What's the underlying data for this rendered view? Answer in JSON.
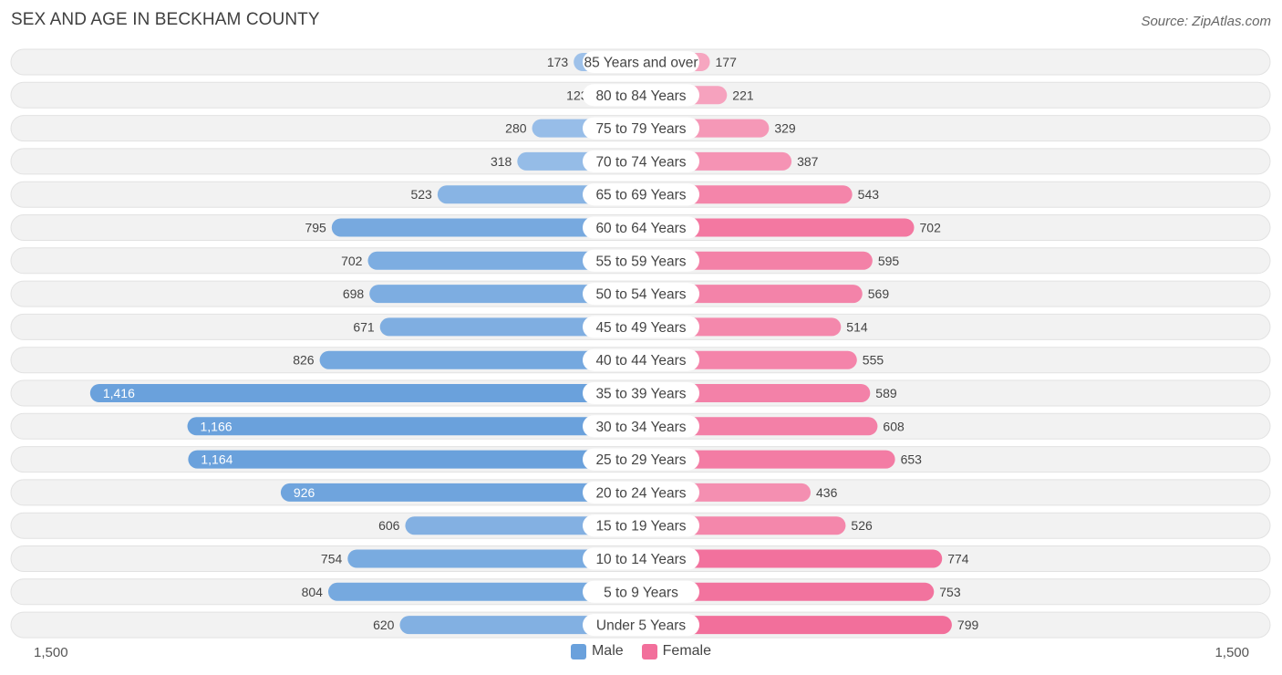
{
  "header": {
    "title": "SEX AND AGE IN BECKHAM COUNTY",
    "source": "Source: ZipAtlas.com"
  },
  "axis": {
    "left_label": "1,500",
    "right_label": "1,500"
  },
  "legend": {
    "male_label": "Male",
    "female_label": "Female"
  },
  "colors": {
    "male_light": "#a9c8ec",
    "male_dark": "#6aa1dc",
    "female_light": "#f7b5cb",
    "female_dark": "#f26f9b",
    "legend_male": "#6aa1dc",
    "legend_female": "#f26f9b"
  },
  "chart_data": {
    "type": "bar",
    "orientation": "horizontal-butterfly",
    "title": "SEX AND AGE IN BECKHAM COUNTY",
    "xlim": [
      -1500,
      1500
    ],
    "categories": [
      "85 Years and over",
      "80 to 84 Years",
      "75 to 79 Years",
      "70 to 74 Years",
      "65 to 69 Years",
      "60 to 64 Years",
      "55 to 59 Years",
      "50 to 54 Years",
      "45 to 49 Years",
      "40 to 44 Years",
      "35 to 39 Years",
      "30 to 34 Years",
      "25 to 29 Years",
      "20 to 24 Years",
      "15 to 19 Years",
      "10 to 14 Years",
      "5 to 9 Years",
      "Under 5 Years"
    ],
    "series": [
      {
        "name": "Male",
        "values": [
          173,
          123,
          280,
          318,
          523,
          795,
          702,
          698,
          671,
          826,
          1416,
          1166,
          1164,
          926,
          606,
          754,
          804,
          620
        ]
      },
      {
        "name": "Female",
        "values": [
          177,
          221,
          329,
          387,
          543,
          702,
          595,
          569,
          514,
          555,
          589,
          608,
          653,
          436,
          526,
          774,
          753,
          799
        ]
      }
    ],
    "value_labels": {
      "male": [
        "173",
        "123",
        "280",
        "318",
        "523",
        "795",
        "702",
        "698",
        "671",
        "826",
        "1,416",
        "1,166",
        "1,164",
        "926",
        "606",
        "754",
        "804",
        "620"
      ],
      "female": [
        "177",
        "221",
        "329",
        "387",
        "543",
        "702",
        "595",
        "569",
        "514",
        "555",
        "589",
        "608",
        "653",
        "436",
        "526",
        "774",
        "753",
        "799"
      ]
    },
    "legend_position": "bottom-center",
    "grid": false
  }
}
